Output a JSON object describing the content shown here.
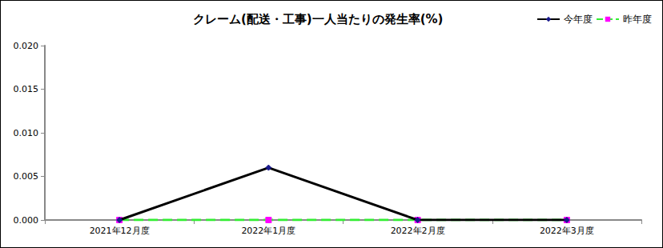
{
  "chart_data": {
    "type": "line",
    "title": "クレーム(配送・工事)一人当たりの発生率(%)",
    "categories": [
      "2021年12月度",
      "2022年1月度",
      "2022年2月度",
      "2022年3月度"
    ],
    "series": [
      {
        "name": "今年度",
        "color": "#000000",
        "marker": "diamond",
        "line_style": "solid",
        "values": [
          0,
          0.006,
          0,
          0
        ]
      },
      {
        "name": "昨年度",
        "color": "#33ee33",
        "marker": "square",
        "line_style": "dashed",
        "values": [
          0,
          0,
          0,
          0
        ]
      }
    ],
    "ylim": [
      0,
      0.02
    ],
    "yticks": [
      {
        "value": 0,
        "label": "0.000"
      },
      0.005,
      {
        "value": 0.01,
        "label": "0.010"
      },
      0.015,
      {
        "value": 0.02,
        "label": "0.020"
      }
    ],
    "grid": false,
    "legend": "top-right",
    "data_labels": false
  }
}
